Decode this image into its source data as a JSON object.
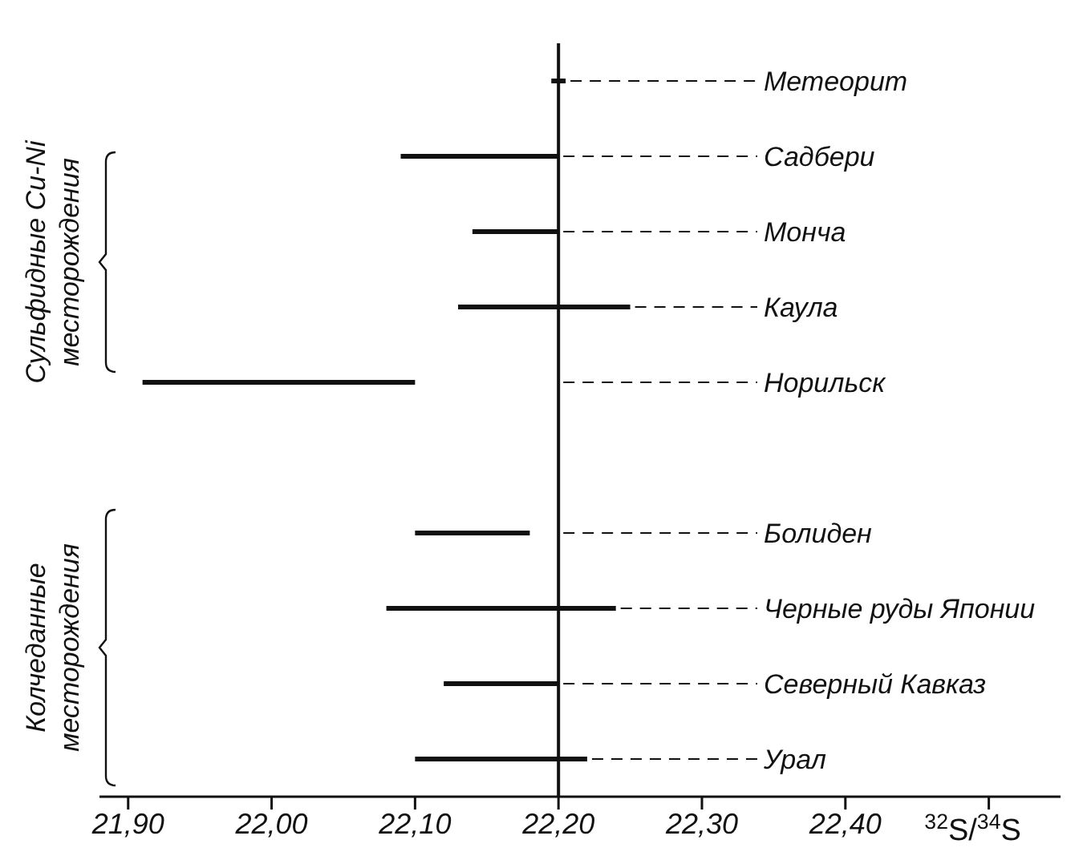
{
  "chart_data": {
    "type": "bar",
    "orientation": "horizontal",
    "categories": [
      "Метеорит",
      "Садбери",
      "Монча",
      "Каула",
      "Норильск",
      null,
      "Болиден",
      "Черные руды Японии",
      "Северный Кавказ",
      "Урал"
    ],
    "base": [
      22.195,
      22.09,
      22.14,
      22.13,
      21.91,
      null,
      22.1,
      22.08,
      22.12,
      22.1
    ],
    "values": [
      0.01,
      0.11,
      0.06,
      0.12,
      0.19,
      null,
      0.08,
      0.16,
      0.08,
      0.12
    ],
    "color": "#111111",
    "xlim": [
      21.88,
      22.55
    ],
    "xticks": [
      {
        "value": 21.9,
        "label": "21,90"
      },
      {
        "value": 22.0,
        "label": "22,00"
      },
      {
        "value": 22.1,
        "label": "22,10"
      },
      {
        "value": 22.2,
        "label": "22,20"
      },
      {
        "value": 22.3,
        "label": "22,30"
      },
      {
        "value": 22.4,
        "label": "22,40"
      },
      {
        "value": 22.5,
        "label": null
      }
    ],
    "xlabel": "$^{32}$S/$^{34}$S",
    "ref_lines": [
      {
        "axis": "x",
        "value": 22.2,
        "color": "#111111"
      }
    ],
    "annotations": [
      "Сульфидные Cu-Ni\nместорождения",
      "Колчеданные\nместорождения"
    ]
  }
}
